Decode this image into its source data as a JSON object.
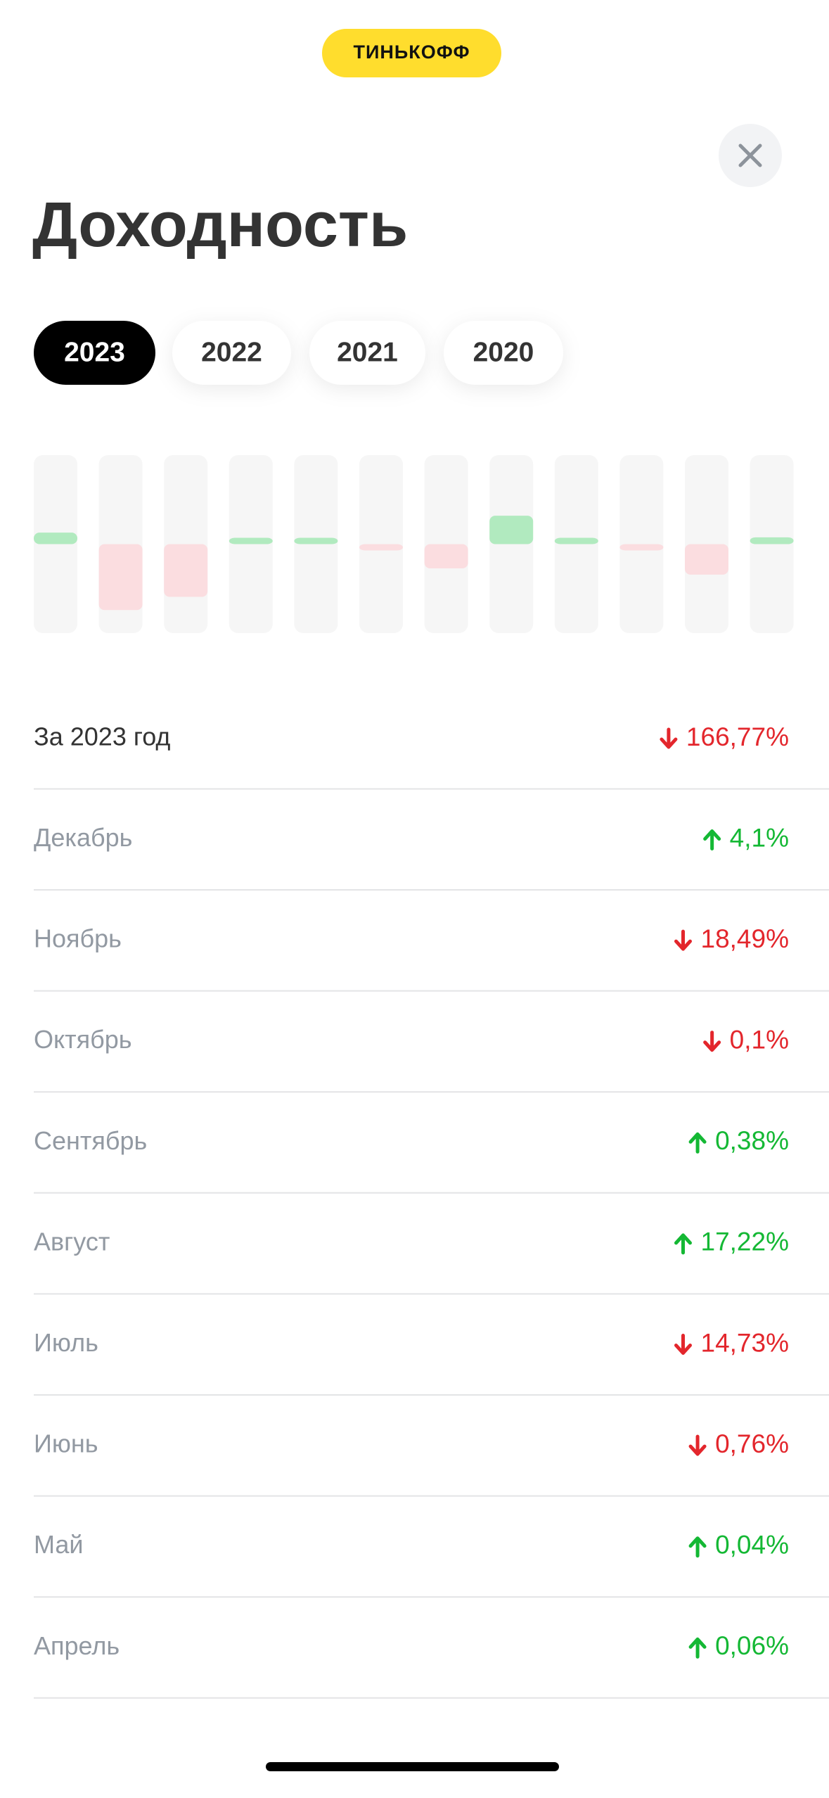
{
  "header": {
    "logo": "ТИНЬКОФФ",
    "title": "Доходность"
  },
  "tabs": [
    {
      "label": "2023",
      "selected": true
    },
    {
      "label": "2022",
      "selected": false
    },
    {
      "label": "2021",
      "selected": false
    },
    {
      "label": "2020",
      "selected": false
    }
  ],
  "chart_data": {
    "type": "bar",
    "categories": [
      null,
      null,
      null,
      null,
      null,
      null,
      null,
      null,
      null,
      null,
      null,
      null
    ],
    "values": [
      7,
      -40,
      -32,
      0.06,
      0.04,
      -0.76,
      -14.73,
      17.22,
      0.38,
      -0.1,
      -18.49,
      4.1
    ],
    "ylim": [
      -54,
      54
    ],
    "colors": {
      "positive": "#b1eabf",
      "negative": "#fbdde0",
      "track": "#f6f6f6"
    }
  },
  "trend_colors": {
    "up": "#14b834",
    "down": "#e3262c"
  },
  "summary": {
    "label": "За 2023 год",
    "value": "166,77%",
    "trend": "down"
  },
  "rows": [
    {
      "label": "Декабрь",
      "value": "4,1%",
      "trend": "up"
    },
    {
      "label": "Ноябрь",
      "value": "18,49%",
      "trend": "down"
    },
    {
      "label": "Октябрь",
      "value": "0,1%",
      "trend": "down"
    },
    {
      "label": "Сентябрь",
      "value": "0,38%",
      "trend": "up"
    },
    {
      "label": "Август",
      "value": "17,22%",
      "trend": "up"
    },
    {
      "label": "Июль",
      "value": "14,73%",
      "trend": "down"
    },
    {
      "label": "Июнь",
      "value": "0,76%",
      "trend": "down"
    },
    {
      "label": "Май",
      "value": "0,04%",
      "trend": "up"
    },
    {
      "label": "Апрель",
      "value": "0,06%",
      "trend": "up"
    }
  ]
}
